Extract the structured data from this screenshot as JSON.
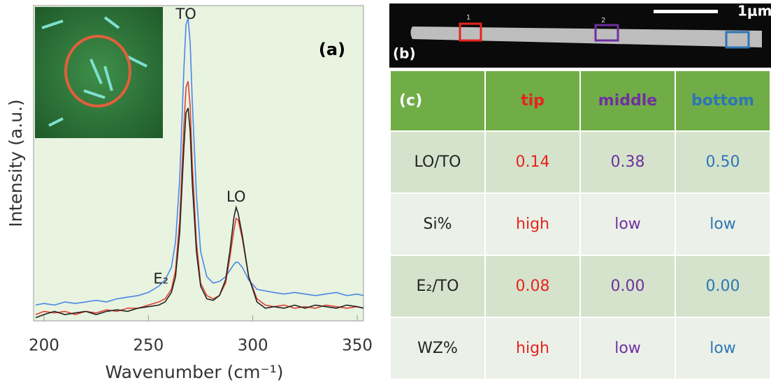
{
  "chart_data": {
    "type": "line",
    "panel_label": "(a)",
    "x_label": "Wavenumber (cm⁻¹)",
    "y_label": "Intensity (a.u.)",
    "annotations": [
      {
        "text": "TO",
        "x": 268,
        "y": 98
      },
      {
        "text": "LO",
        "x": 292,
        "y": 40
      },
      {
        "text": "E₂",
        "x": 256,
        "y": 14
      }
    ],
    "x": [
      196,
      200,
      205,
      210,
      215,
      220,
      225,
      230,
      235,
      240,
      245,
      250,
      255,
      258,
      261,
      263,
      265,
      267,
      268,
      269,
      270,
      271,
      273,
      275,
      278,
      281,
      284,
      287,
      289,
      291,
      292,
      293,
      295,
      298,
      302,
      306,
      310,
      315,
      320,
      325,
      330,
      335,
      340,
      345,
      350,
      353
    ],
    "series": [
      {
        "color": "#4a86e8",
        "values": [
          5,
          5.5,
          5,
          6,
          5.5,
          6,
          6.5,
          6,
          7,
          7.5,
          8,
          9,
          11,
          13,
          17,
          25,
          45,
          80,
          94,
          96,
          88,
          70,
          40,
          22,
          14,
          12,
          12.5,
          14,
          16,
          18,
          18.6,
          18.5,
          17,
          13,
          10,
          9.5,
          9,
          8.5,
          9,
          8.5,
          8,
          8.5,
          9,
          8,
          8.5,
          8
        ]
      },
      {
        "color": "#e0402e",
        "values": [
          2,
          3,
          2.5,
          3,
          2,
          3,
          2.5,
          3.5,
          3,
          4,
          4,
          5,
          6,
          7,
          10,
          16,
          32,
          62,
          74,
          76,
          68,
          50,
          25,
          12,
          8,
          7,
          8,
          12,
          20,
          29,
          32.5,
          32,
          26,
          14,
          7,
          5,
          4.5,
          5,
          4,
          4.5,
          4,
          5,
          4.5,
          4,
          4.5,
          4
        ]
      },
      {
        "color": "#222222",
        "values": [
          1,
          2,
          3,
          2,
          2.5,
          3,
          2,
          3,
          3.5,
          3,
          4,
          4.5,
          5,
          6,
          9,
          14,
          28,
          55,
          66,
          67.5,
          60,
          44,
          22,
          11,
          7,
          6.5,
          8,
          13,
          22,
          33,
          36,
          34,
          27,
          14,
          6,
          4,
          4.5,
          4,
          5,
          4,
          5,
          4.5,
          4,
          5,
          4.5,
          4
        ]
      }
    ],
    "xlim": [
      195,
      353
    ],
    "xticks": [
      200,
      250,
      300,
      350
    ],
    "ylim": [
      0,
      100
    ]
  },
  "image_b": {
    "panel_label": "(b)",
    "scale_bar": "1μm",
    "markers": [
      "1",
      "2"
    ]
  },
  "table": {
    "header": [
      "(c)",
      "tip",
      "middle",
      "bottom"
    ],
    "rows": [
      [
        "LO/TO",
        "0.14",
        "0.38",
        "0.50"
      ],
      [
        "Si%",
        "high",
        "low",
        "low"
      ],
      [
        "E₂/TO",
        "0.08",
        "0.00",
        "0.00"
      ],
      [
        "WZ%",
        "high",
        "low",
        "low"
      ]
    ]
  }
}
